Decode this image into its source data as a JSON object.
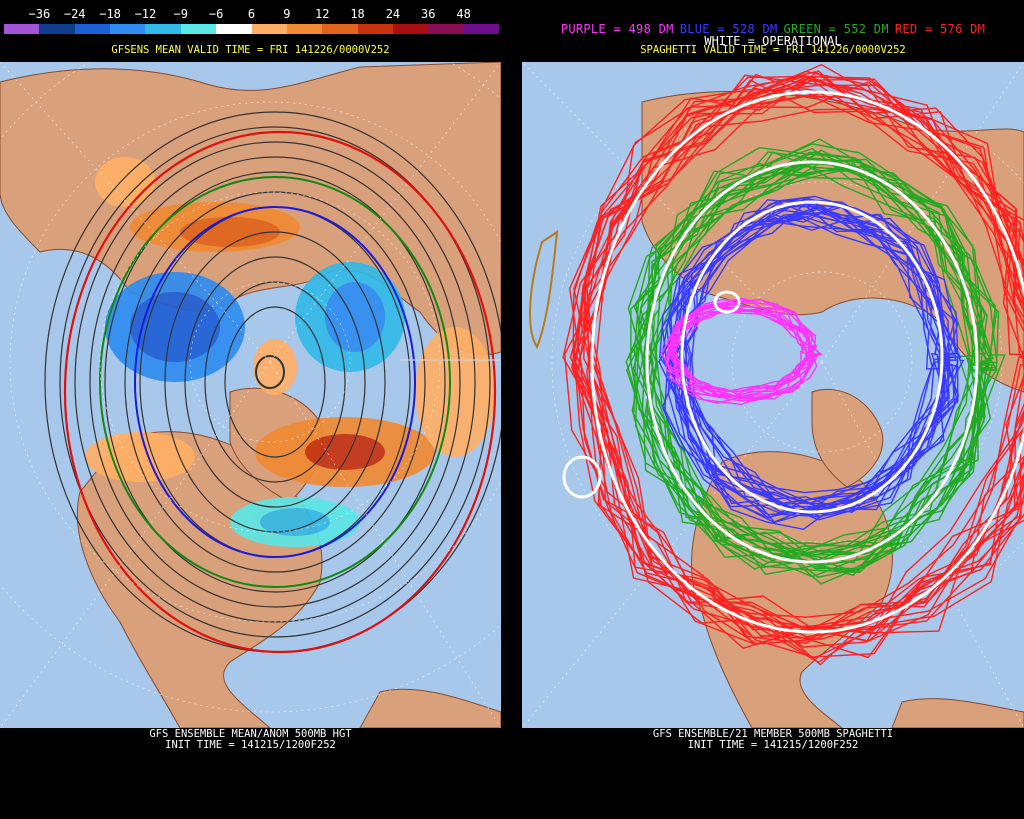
{
  "left": {
    "colorbar_ticks": [
      "−36",
      "−24",
      "−18",
      "−12",
      "−9",
      "−6",
      "6",
      "9",
      "12",
      "18",
      "24",
      "36",
      "48"
    ],
    "colorbar_colors": [
      "#a154d6",
      "#0f3d8c",
      "#1f5fd6",
      "#2f8cf0",
      "#33b9e8",
      "#5ce6e6",
      "#ffffff",
      "#ffb066",
      "#f08a33",
      "#e0641c",
      "#c8320f",
      "#a80f0f",
      "#8a0f52",
      "#6b0f8a"
    ],
    "title": "GFSENS MEAN VALID TIME = FRI 141226/0000V252",
    "caption_line1": "GFS ENSEMBLE MEAN/ANOM 500MB HGT",
    "caption_line2": "INIT TIME = 141215/1200F252"
  },
  "right": {
    "legend": [
      {
        "text": "PURPLE = 498 DM",
        "color": "#ff33ff"
      },
      {
        "text": "BLUE = 528 DM",
        "color": "#3a3aff"
      },
      {
        "text": "GREEN = 552 DM",
        "color": "#22aa22"
      },
      {
        "text": "RED = 576 DM",
        "color": "#ff2020"
      }
    ],
    "operational": "WHITE = OPERATIONAL",
    "title": "SPAGHETTI VALID TIME = FRI 141226/0000V252",
    "caption_line1": "GFS ENSEMBLE/21 MEMBER 500MB SPAGHETTI",
    "caption_line2": "INIT TIME = 141215/1200F252"
  },
  "colors": {
    "ocean": "#a7c8ea",
    "land": "#d9a07c",
    "border": "#8a4a2a"
  }
}
